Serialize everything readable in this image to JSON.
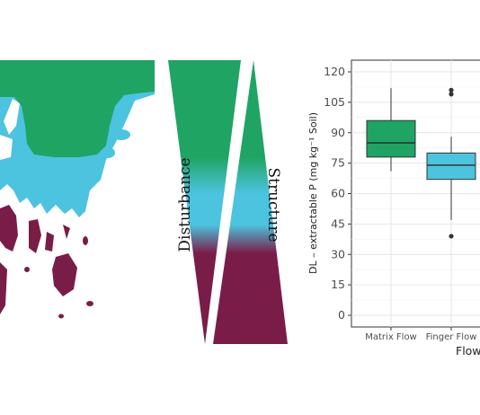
{
  "colors": {
    "matrix": "#1fa463",
    "finger": "#4cc3df",
    "structure_low": "#7a1c48",
    "grid": "#e6e6e6",
    "panel_border": "#333333",
    "whisker": "#333333"
  },
  "wedges": {
    "disturbance_label": "Disturbance",
    "structure_label": "Structure"
  },
  "chart_data": {
    "type": "box",
    "categories": [
      "Matrix Flow",
      "Finger Flow"
    ],
    "xlabel": "Flow",
    "ylabel": "DL – extractable  P  (mg kg⁻¹ Soil)",
    "ylim": [
      0,
      120
    ],
    "yticks": [
      0,
      15,
      30,
      45,
      60,
      75,
      90,
      105,
      120
    ],
    "grid": true,
    "boxes": [
      {
        "category": "Matrix Flow",
        "color": "#1fa463",
        "whisker_low": 71,
        "q1": 78,
        "median": 85,
        "q3": 96,
        "whisker_high": 112,
        "outliers": []
      },
      {
        "category": "Finger Flow",
        "color": "#4cc3df",
        "whisker_low": 47,
        "q1": 67,
        "median": 74,
        "q3": 80,
        "whisker_high": 88,
        "outliers": [
          39,
          109,
          111
        ]
      }
    ]
  }
}
